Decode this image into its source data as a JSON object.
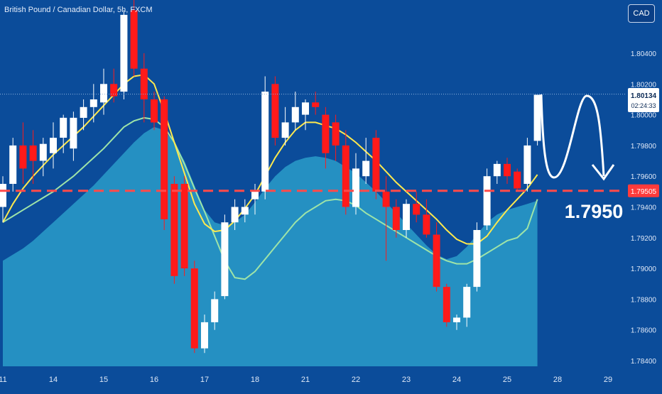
{
  "header": {
    "title": "British Pound / Canadian Dollar, 5h, FXCM",
    "currency_button": "CAD"
  },
  "price_tag": {
    "value": "1.80134",
    "countdown": "02:24:33"
  },
  "level_tag": "1.79505",
  "annotation": "1.7950",
  "colors": {
    "background": "#0b4c9a",
    "up_candle": "#ffffff",
    "down_candle": "#ff1a1a",
    "fast_ma": "#ffe94d",
    "slow_ma": "#9ee4a8",
    "area_fill": "#2a9cc9",
    "level_line": "#ff4a4a"
  },
  "icons": {
    "annotation_arrow": "curved-down-arrow-icon"
  },
  "chart_data": {
    "type": "candlestick",
    "symbol": "British Pound / Canadian Dollar",
    "interval": "5h",
    "source": "FXCM",
    "y_ticks": [
      1.784,
      1.786,
      1.788,
      1.79,
      1.792,
      1.794,
      1.796,
      1.798,
      1.8,
      1.802,
      1.804
    ],
    "y_tick_labels": [
      "1.78400",
      "1.78600",
      "1.78800",
      "1.79000",
      "1.79200",
      "1.79400",
      "1.79600",
      "1.79800",
      "1.80000",
      "1.80200",
      "1.80400"
    ],
    "ylim": [
      1.7835,
      1.807
    ],
    "x_ticks": [
      {
        "label": "11",
        "bar": 0
      },
      {
        "label": "14",
        "bar": 5
      },
      {
        "label": "15",
        "bar": 10
      },
      {
        "label": "16",
        "bar": 15
      },
      {
        "label": "17",
        "bar": 20
      },
      {
        "label": "18",
        "bar": 25
      },
      {
        "label": "21",
        "bar": 30
      },
      {
        "label": "22",
        "bar": 35
      },
      {
        "label": "23",
        "bar": 40
      },
      {
        "label": "24",
        "bar": 45
      },
      {
        "label": "25",
        "bar": 50
      },
      {
        "label": "28",
        "bar": 55
      },
      {
        "label": "29",
        "bar": 60
      }
    ],
    "candles": [
      [
        1.794,
        1.796,
        1.793,
        1.7955
      ],
      [
        1.7955,
        1.7985,
        1.795,
        1.798
      ],
      [
        1.798,
        1.7995,
        1.7955,
        1.7965
      ],
      [
        1.798,
        1.799,
        1.7955,
        1.797
      ],
      [
        1.797,
        1.7985,
        1.796,
        1.7981
      ],
      [
        1.7975,
        1.7995,
        1.7965,
        1.7985
      ],
      [
        1.7985,
        1.8,
        1.7975,
        1.7998
      ],
      [
        1.7978,
        1.8002,
        1.797,
        1.7998
      ],
      [
        1.7998,
        1.801,
        1.799,
        1.8005
      ],
      [
        1.8005,
        1.802,
        1.7995,
        1.801
      ],
      [
        1.8008,
        1.803,
        1.8,
        1.802
      ],
      [
        1.802,
        1.803,
        1.8008,
        1.8012
      ],
      [
        1.8015,
        1.8068,
        1.801,
        1.8065
      ],
      [
        1.8068,
        1.8075,
        1.8025,
        1.803
      ],
      [
        1.803,
        1.804,
        1.7995,
        1.801
      ],
      [
        1.801,
        1.8015,
        1.799,
        1.7995
      ],
      [
        1.801,
        1.8012,
        1.7925,
        1.7932
      ],
      [
        1.7955,
        1.796,
        1.789,
        1.7895
      ],
      [
        1.7955,
        1.796,
        1.7895,
        1.79
      ],
      [
        1.79,
        1.7905,
        1.7845,
        1.7848
      ],
      [
        1.7848,
        1.787,
        1.7845,
        1.7865
      ],
      [
        1.7865,
        1.7885,
        1.786,
        1.788
      ],
      [
        1.7882,
        1.7935,
        1.788,
        1.793
      ],
      [
        1.793,
        1.7945,
        1.7925,
        1.794
      ],
      [
        1.7935,
        1.7945,
        1.793,
        1.794
      ],
      [
        1.7945,
        1.7955,
        1.7935,
        1.795
      ],
      [
        1.795,
        1.8025,
        1.7945,
        1.8015
      ],
      [
        1.802,
        1.8025,
        1.798,
        1.7985
      ],
      [
        1.7985,
        1.8005,
        1.798,
        1.7995
      ],
      [
        1.7995,
        1.8015,
        1.799,
        1.8005
      ],
      [
        1.8,
        1.801,
        1.799,
        1.8008
      ],
      [
        1.8008,
        1.8015,
        1.8,
        1.8005
      ],
      [
        1.8,
        1.8005,
        1.7965,
        1.7975
      ],
      [
        1.7995,
        1.8,
        1.797,
        1.798
      ],
      [
        1.798,
        1.799,
        1.7935,
        1.794
      ],
      [
        1.794,
        1.7975,
        1.7935,
        1.7965
      ],
      [
        1.796,
        1.7985,
        1.7955,
        1.797
      ],
      [
        1.7985,
        1.799,
        1.7945,
        1.795
      ],
      [
        1.795,
        1.796,
        1.7905,
        1.794
      ],
      [
        1.794,
        1.7945,
        1.792,
        1.7925
      ],
      [
        1.7925,
        1.7945,
        1.792,
        1.7942
      ],
      [
        1.7942,
        1.795,
        1.793,
        1.7935
      ],
      [
        1.7935,
        1.7945,
        1.792,
        1.7922
      ],
      [
        1.7922,
        1.793,
        1.7885,
        1.7888
      ],
      [
        1.7888,
        1.789,
        1.7862,
        1.7865
      ],
      [
        1.7865,
        1.787,
        1.786,
        1.7868
      ],
      [
        1.7868,
        1.789,
        1.7862,
        1.7888
      ],
      [
        1.7888,
        1.793,
        1.7885,
        1.7925
      ],
      [
        1.7928,
        1.7965,
        1.7925,
        1.796
      ],
      [
        1.796,
        1.797,
        1.7955,
        1.7968
      ],
      [
        1.7968,
        1.7972,
        1.7955,
        1.796
      ],
      [
        1.7963,
        1.7965,
        1.795,
        1.7952
      ],
      [
        1.7955,
        1.7985,
        1.795,
        1.798
      ],
      [
        1.7983,
        1.8013,
        1.798,
        1.8013
      ]
    ],
    "fast_ma_line": [
      1.793,
      1.7942,
      1.7952,
      1.796,
      1.7967,
      1.7974,
      1.798,
      1.7986,
      1.7992,
      1.7999,
      1.8006,
      1.8013,
      1.802,
      1.8025,
      1.8026,
      1.802,
      1.8002,
      1.7982,
      1.7962,
      1.7942,
      1.7929,
      1.7924,
      1.7925,
      1.7931,
      1.7939,
      1.7948,
      1.796,
      1.7972,
      1.7982,
      1.799,
      1.7995,
      1.7995,
      1.7993,
      1.7991,
      1.7987,
      1.7982,
      1.7976,
      1.797,
      1.7963,
      1.7956,
      1.795,
      1.7944,
      1.7938,
      1.7932,
      1.7925,
      1.7919,
      1.7916,
      1.7916,
      1.7921,
      1.793,
      1.7938,
      1.7945,
      1.7952,
      1.7961
    ],
    "slow_ma_line": [
      1.793,
      1.7934,
      1.7938,
      1.7942,
      1.7946,
      1.795,
      1.7955,
      1.796,
      1.7966,
      1.7972,
      1.7978,
      1.7985,
      1.7992,
      1.7996,
      1.7998,
      1.7997,
      1.7992,
      1.7982,
      1.7968,
      1.7952,
      1.7937,
      1.7921,
      1.7905,
      1.7894,
      1.7893,
      1.7898,
      1.7906,
      1.7914,
      1.7922,
      1.793,
      1.7936,
      1.794,
      1.7944,
      1.7945,
      1.7944,
      1.7941,
      1.7936,
      1.7932,
      1.7928,
      1.7924,
      1.792,
      1.7916,
      1.7912,
      1.7908,
      1.7905,
      1.7903,
      1.7903,
      1.7906,
      1.791,
      1.7914,
      1.7918,
      1.792,
      1.7926,
      1.7945
    ],
    "area_line": [
      1.7905,
      1.7909,
      1.7913,
      1.7918,
      1.7924,
      1.793,
      1.7936,
      1.7942,
      1.7948,
      1.7954,
      1.7961,
      1.7968,
      1.7975,
      1.7982,
      1.7988,
      1.7992,
      1.799,
      1.7982,
      1.797,
      1.7954,
      1.7938,
      1.793,
      1.7928,
      1.793,
      1.7935,
      1.7943,
      1.7952,
      1.796,
      1.7966,
      1.797,
      1.7972,
      1.7973,
      1.7972,
      1.797,
      1.7966,
      1.7962,
      1.7956,
      1.795,
      1.7943,
      1.7936,
      1.7929,
      1.7922,
      1.7915,
      1.7909,
      1.7906,
      1.7908,
      1.7914,
      1.7922,
      1.793,
      1.7935,
      1.7938,
      1.794,
      1.7942,
      1.7944
    ],
    "level": 1.79505,
    "last_price": 1.80134
  }
}
